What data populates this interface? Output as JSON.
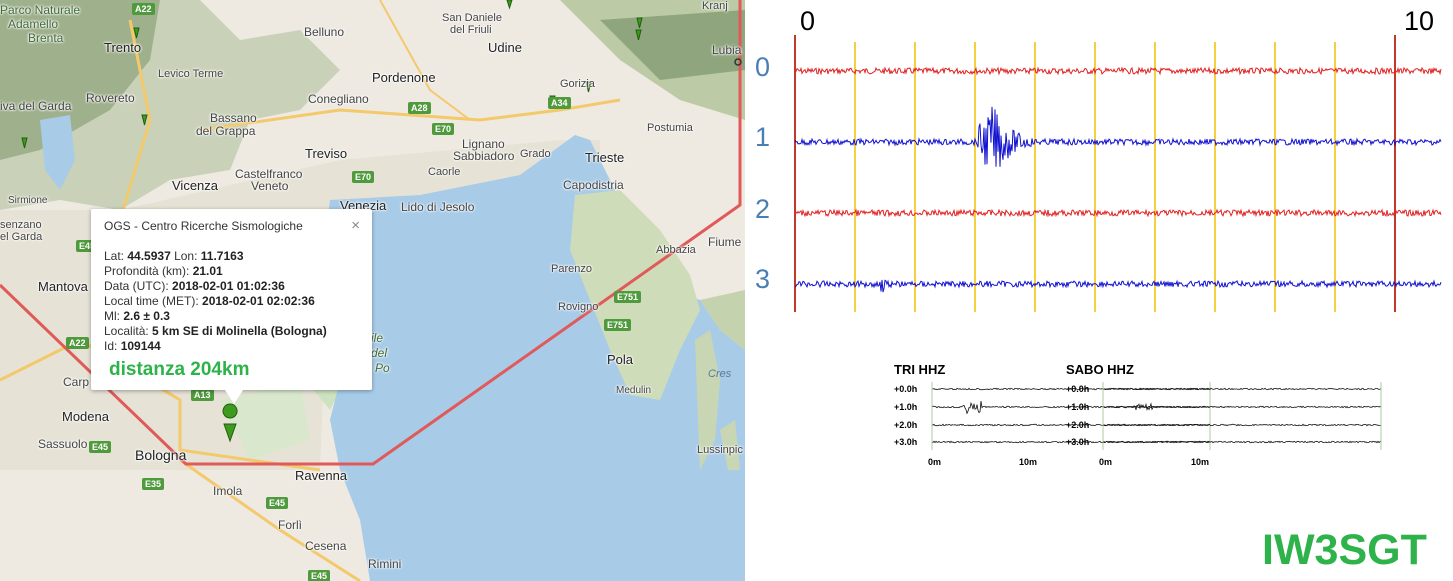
{
  "map": {
    "cities": [
      {
        "name": "Parco Naturale",
        "cls": "park"
      },
      {
        "name": "Adamello",
        "cls": "park"
      },
      {
        "name": "Brenta",
        "cls": "park"
      },
      {
        "name": "Trento"
      },
      {
        "name": "Levico Terme"
      },
      {
        "name": "Rovereto"
      },
      {
        "name": "iva del Garda"
      },
      {
        "name": "Bassano"
      },
      {
        "name": "del Grappa"
      },
      {
        "name": "Belluno"
      },
      {
        "name": "San Daniele"
      },
      {
        "name": "del Friuli"
      },
      {
        "name": "Udine",
        "cls": "big"
      },
      {
        "name": "Pordenone",
        "cls": "big"
      },
      {
        "name": "Conegliano"
      },
      {
        "name": "Gorizia"
      },
      {
        "name": "Kranj"
      },
      {
        "name": "Lubia"
      },
      {
        "name": "Postumia"
      },
      {
        "name": "Treviso",
        "cls": "big"
      },
      {
        "name": "Lignano"
      },
      {
        "name": "Sabbiadoro"
      },
      {
        "name": "Grado"
      },
      {
        "name": "Trieste",
        "cls": "big"
      },
      {
        "name": "Castelfranco"
      },
      {
        "name": "Veneto"
      },
      {
        "name": "Caorle"
      },
      {
        "name": "Capodistria"
      },
      {
        "name": "Vicenza",
        "cls": "big"
      },
      {
        "name": "Venezia",
        "cls": "big"
      },
      {
        "name": "Lido di Jesolo"
      },
      {
        "name": "Sirmione"
      },
      {
        "name": "senzano"
      },
      {
        "name": "el Garda"
      },
      {
        "name": "Abbazia"
      },
      {
        "name": "Fiume"
      },
      {
        "name": "Mantova",
        "cls": "big"
      },
      {
        "name": "Parenzo"
      },
      {
        "name": "Rovigno"
      },
      {
        "name": "Carp"
      },
      {
        "name": "Pola",
        "cls": "big"
      },
      {
        "name": "Medulin"
      },
      {
        "name": "Cres",
        "cls": "water"
      },
      {
        "name": "Modena",
        "cls": "big"
      },
      {
        "name": "Sassuolo"
      },
      {
        "name": "Lussinpic"
      },
      {
        "name": "Bologna",
        "cls": "big"
      },
      {
        "name": "Ravenna",
        "cls": "big"
      },
      {
        "name": "Imola"
      },
      {
        "name": "Forlì"
      },
      {
        "name": "Cesena"
      },
      {
        "name": "Rimini"
      },
      {
        "name": "ile",
        "cls": "park"
      },
      {
        "name": "del",
        "cls": "park"
      },
      {
        "name": "Po",
        "cls": "park"
      }
    ],
    "roads": [
      "A22",
      "A28",
      "E70",
      "A34",
      "E70",
      "E45",
      "A22",
      "A13",
      "E45",
      "E35",
      "E751",
      "E751",
      "E45",
      "E45"
    ],
    "popup": {
      "title": "OGS - Centro Ricerche Sismologiche",
      "close": "×",
      "rows": [
        {
          "label": "Lat: ",
          "value": "44.5937",
          "label2": " Lon: ",
          "value2": "11.7163"
        },
        {
          "label": "Profondità (km): ",
          "value": "21.01"
        },
        {
          "label": "Data (UTC): ",
          "value": "2018-02-01 01:02:36"
        },
        {
          "label": "Local time (MET): ",
          "value": "2018-02-01 02:02:36"
        },
        {
          "label": "Ml: ",
          "value": "2.6 ± 0.3"
        },
        {
          "label": "Località: ",
          "value": "5 km SE di Molinella (Bologna)"
        },
        {
          "label": "Id: ",
          "value": "109144"
        }
      ],
      "distance": "distanza 204km"
    }
  },
  "seismogram": {
    "axis_start": "0",
    "axis_end": "10",
    "traces": [
      {
        "label": "0",
        "color": "#e02020"
      },
      {
        "label": "1",
        "color": "#1010d0"
      },
      {
        "label": "2",
        "color": "#e02020"
      },
      {
        "label": "3",
        "color": "#1010d0"
      }
    ],
    "gridline_color": "#f2c200",
    "mini": [
      {
        "title": "TRI HHZ",
        "rows": [
          "+0.0h",
          "+1.0h",
          "+2.0h",
          "+3.0h"
        ],
        "ax_start": "0m",
        "ax_end": "10m"
      },
      {
        "title": "SABO HHZ",
        "rows": [
          "+0.0h",
          "+1.0h",
          "+2.0h",
          "+3.0h"
        ],
        "ax_start": "0m",
        "ax_end": "10m"
      }
    ]
  },
  "callsign": "IW3SGT"
}
